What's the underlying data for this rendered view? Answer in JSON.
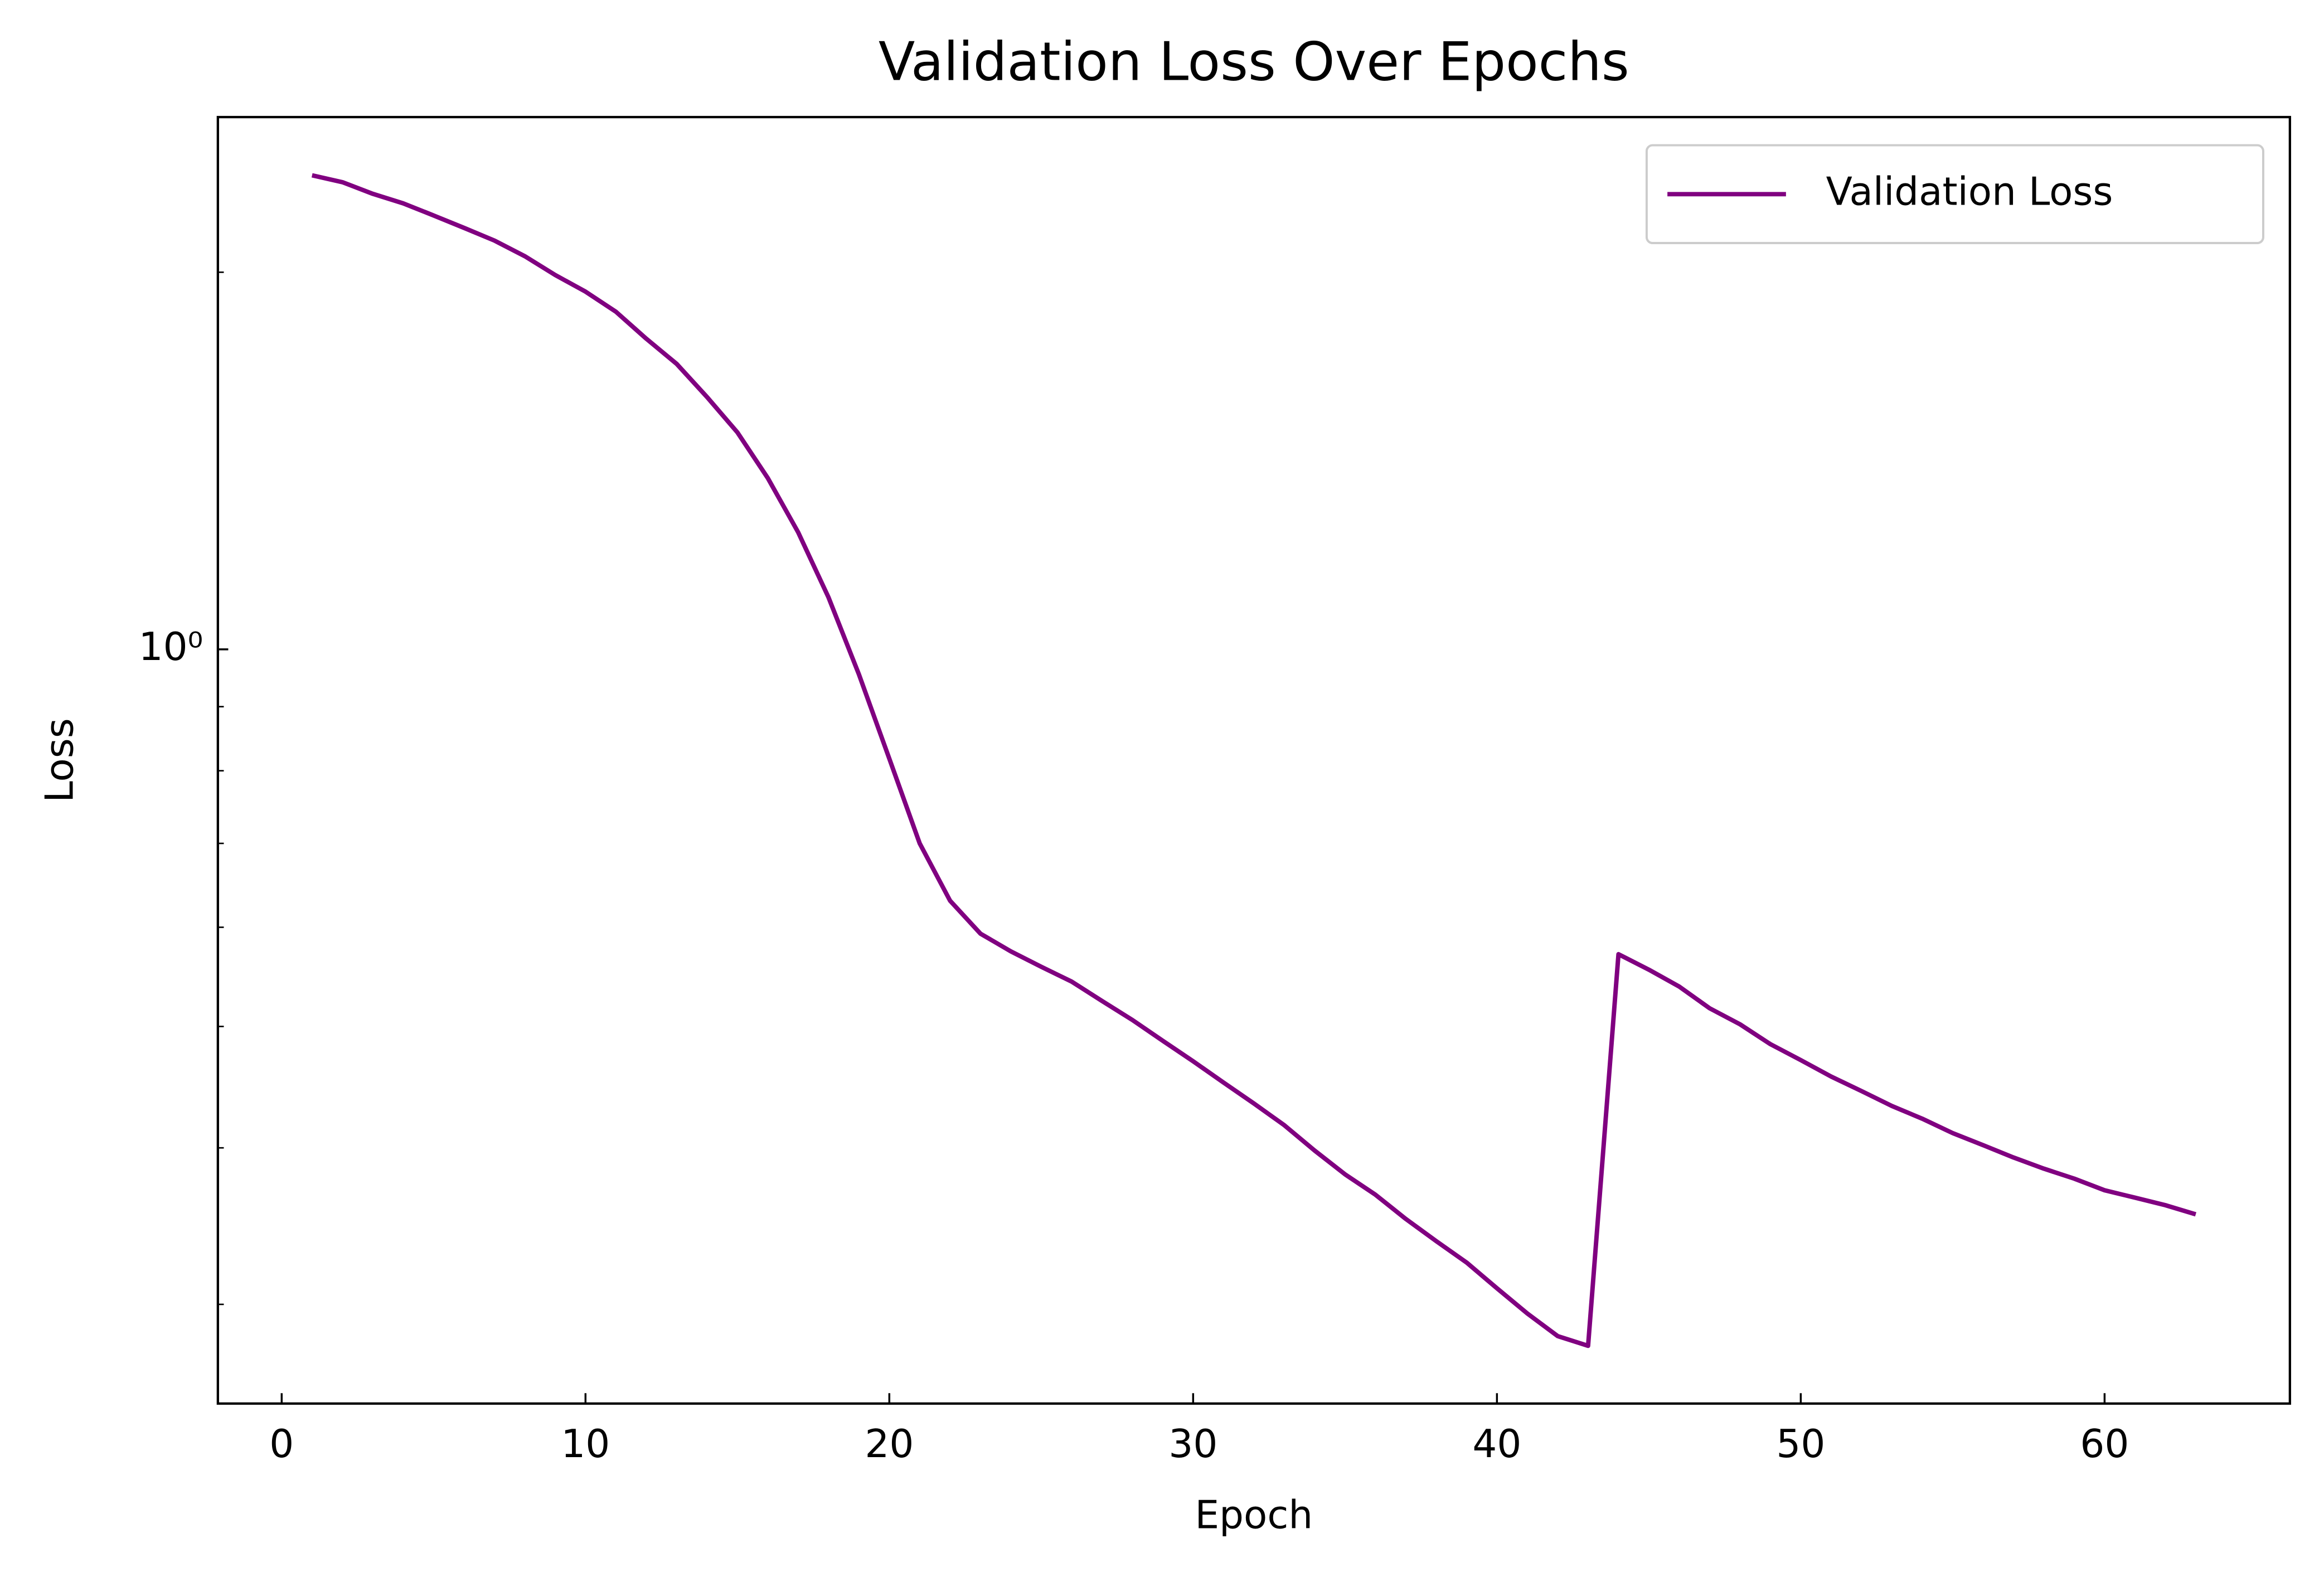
{
  "chart_data": {
    "type": "line",
    "title": "Validation Loss Over Epochs",
    "x_label": "Epoch",
    "y_label": "Loss",
    "x": [
      1,
      2,
      3,
      4,
      5,
      6,
      7,
      8,
      9,
      10,
      11,
      12,
      13,
      14,
      15,
      16,
      17,
      18,
      19,
      20,
      21,
      22,
      23,
      24,
      25,
      26,
      27,
      28,
      29,
      30,
      31,
      32,
      33,
      34,
      35,
      36,
      37,
      38,
      39,
      40,
      41,
      42,
      43,
      44,
      45,
      46,
      47,
      48,
      49,
      50,
      51,
      52,
      53,
      54,
      55,
      56,
      57,
      58,
      59,
      60,
      61,
      62,
      63
    ],
    "series": [
      {
        "name": "Validation Loss",
        "color": "#800080",
        "values": [
          2.39,
          2.36,
          2.31,
          2.27,
          2.22,
          2.17,
          2.12,
          2.06,
          1.99,
          1.93,
          1.86,
          1.77,
          1.69,
          1.59,
          1.49,
          1.37,
          1.24,
          1.1,
          0.955,
          0.818,
          0.7,
          0.63,
          0.593,
          0.574,
          0.558,
          0.543,
          0.524,
          0.506,
          0.487,
          0.469,
          0.451,
          0.434,
          0.417,
          0.398,
          0.381,
          0.367,
          0.351,
          0.337,
          0.324,
          0.309,
          0.295,
          0.283,
          0.278,
          0.571,
          0.555,
          0.538,
          0.517,
          0.502,
          0.484,
          0.47,
          0.456,
          0.444,
          0.432,
          0.422,
          0.411,
          0.402,
          0.393,
          0.385,
          0.378,
          0.37,
          0.365,
          0.36,
          0.354
        ]
      }
    ],
    "xlim": [
      -2.1,
      66.1
    ],
    "xticks": [
      0,
      10,
      20,
      30,
      40,
      50,
      60
    ],
    "ylim": [
      0.25,
      2.66
    ],
    "yscale": "log",
    "yticks": [
      {
        "value": 1,
        "label": "10⁰"
      }
    ],
    "yminorticks": [
      0.3,
      0.4,
      0.5,
      0.6,
      0.7,
      0.8,
      0.9,
      2
    ],
    "grid": false,
    "legend": "upper right"
  }
}
